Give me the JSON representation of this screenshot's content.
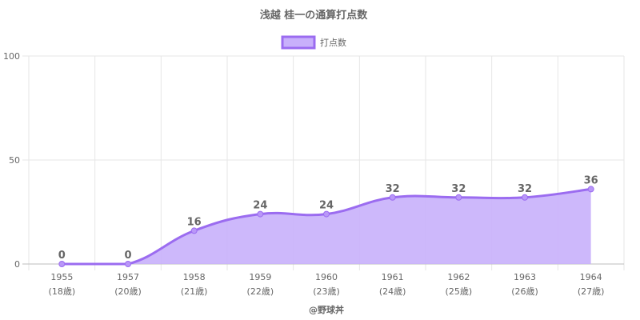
{
  "chart_data": {
    "type": "area",
    "title": "浅越 桂一の通算打点数",
    "categories": [
      "1955",
      "1957",
      "1958",
      "1959",
      "1960",
      "1961",
      "1962",
      "1963",
      "1964"
    ],
    "sublabels": [
      "(18歳)",
      "(20歳)",
      "(21歳)",
      "(22歳)",
      "(23歳)",
      "(24歳)",
      "(25歳)",
      "(26歳)",
      "(27歳)"
    ],
    "series": [
      {
        "name": "打点数",
        "values": [
          0,
          0,
          16,
          24,
          24,
          32,
          32,
          32,
          36
        ]
      }
    ],
    "ylim": [
      0,
      100
    ],
    "yticks": [
      "0",
      "50",
      "100"
    ],
    "legend_position": "top-center",
    "grid": true,
    "colors": {
      "line": "#9b6cf0",
      "fill": "#c8b0fb",
      "point": "#b997f8"
    }
  },
  "credit": "@野球丼"
}
